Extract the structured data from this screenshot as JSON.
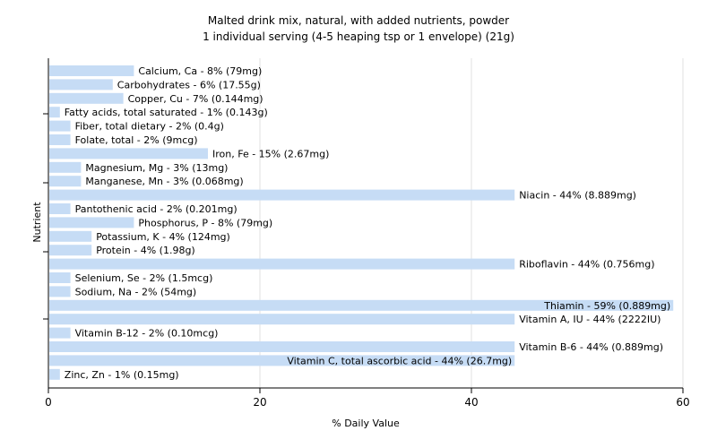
{
  "chart_data": {
    "type": "bar",
    "orientation": "horizontal",
    "title": "Malted drink mix, natural, with added nutrients, powder",
    "subtitle": "1 individual serving (4-5 heaping tsp or 1 envelope) (21g)",
    "xlabel": "% Daily Value",
    "ylabel": "Nutrient",
    "xlim": [
      0,
      60
    ],
    "xticks": [
      "0",
      "20",
      "40",
      "60"
    ],
    "grid": true,
    "bar_color": "#c6dcf5",
    "categories": [
      "Calcium, Ca",
      "Carbohydrates",
      "Copper, Cu",
      "Fatty acids, total saturated",
      "Fiber, total dietary",
      "Folate, total",
      "Iron, Fe",
      "Magnesium, Mg",
      "Manganese, Mn",
      "Niacin",
      "Pantothenic acid",
      "Phosphorus, P",
      "Potassium, K",
      "Protein",
      "Riboflavin",
      "Selenium, Se",
      "Sodium, Na",
      "Thiamin",
      "Vitamin A, IU",
      "Vitamin B-12",
      "Vitamin B-6",
      "Vitamin C, total ascorbic acid",
      "Zinc, Zn"
    ],
    "values": [
      8,
      6,
      7,
      1,
      2,
      2,
      15,
      3,
      3,
      44,
      2,
      8,
      4,
      4,
      44,
      2,
      2,
      59,
      44,
      2,
      44,
      44,
      1
    ],
    "labels": [
      "Calcium, Ca - 8% (79mg)",
      "Carbohydrates - 6% (17.55g)",
      "Copper, Cu - 7% (0.144mg)",
      "Fatty acids, total saturated - 1% (0.143g)",
      "Fiber, total dietary - 2% (0.4g)",
      "Folate, total - 2% (9mcg)",
      "Iron, Fe - 15% (2.67mg)",
      "Magnesium, Mg - 3% (13mg)",
      "Manganese, Mn - 3% (0.068mg)",
      "Niacin - 44% (8.889mg)",
      "Pantothenic acid - 2% (0.201mg)",
      "Phosphorus, P - 8% (79mg)",
      "Potassium, K - 4% (124mg)",
      "Protein - 4% (1.98g)",
      "Riboflavin - 44% (0.756mg)",
      "Selenium, Se - 2% (1.5mcg)",
      "Sodium, Na - 2% (54mg)",
      "Thiamin - 59% (0.889mg)",
      "Vitamin A, IU - 44% (2222IU)",
      "Vitamin B-12 - 2% (0.10mcg)",
      "Vitamin B-6 - 44% (0.889mg)",
      "Vitamin C, total ascorbic acid - 44% (26.7mg)",
      "Zinc, Zn - 1% (0.15mg)"
    ]
  }
}
